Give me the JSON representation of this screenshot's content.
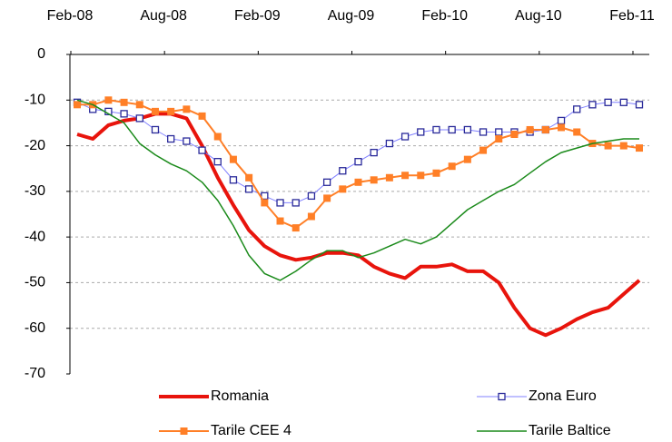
{
  "chart_data": {
    "type": "line",
    "x": [
      "Feb-08",
      "Mar-08",
      "Apr-08",
      "May-08",
      "Jun-08",
      "Jul-08",
      "Aug-08",
      "Sep-08",
      "Oct-08",
      "Nov-08",
      "Dec-08",
      "Jan-09",
      "Feb-09",
      "Mar-09",
      "Apr-09",
      "May-09",
      "Jun-09",
      "Jul-09",
      "Aug-09",
      "Sep-09",
      "Oct-09",
      "Nov-09",
      "Dec-09",
      "Jan-10",
      "Feb-10",
      "Mar-10",
      "Apr-10",
      "May-10",
      "Jun-10",
      "Jul-10",
      "Aug-10",
      "Sep-10",
      "Oct-10",
      "Nov-10",
      "Dec-10",
      "Jan-11",
      "Feb-11"
    ],
    "xticks": [
      "Feb-08",
      "Aug-08",
      "Feb-09",
      "Aug-09",
      "Feb-10",
      "Aug-10",
      "Feb-11"
    ],
    "ylim": [
      -70,
      0
    ],
    "yticks": [
      0,
      -10,
      -20,
      -30,
      -40,
      -50,
      -60,
      -70
    ],
    "grid": true,
    "series": [
      {
        "name": "Romania",
        "color": "#e8140c",
        "width": 4,
        "marker": "none",
        "values": [
          -17.5,
          -18.5,
          -15.5,
          -14.5,
          -14,
          -13,
          -13,
          -14,
          -20,
          -27,
          -33,
          -38.5,
          -42,
          -44,
          -45,
          -44.5,
          -43.5,
          -43.5,
          -44,
          -46.5,
          -48,
          -49,
          -46.5,
          -46.5,
          -46,
          -47.5,
          -47.5,
          -50,
          -55.5,
          -60,
          -61.5,
          -60,
          -58,
          -56.5,
          -55.5,
          -52.5,
          -49.5
        ]
      },
      {
        "name": "Zona Euro",
        "color": "#8080ff",
        "width": 1,
        "marker": "square-open",
        "marker_color": "#2a2a9a",
        "values": [
          -10.5,
          -12,
          -12.5,
          -13,
          -14,
          -16.5,
          -18.5,
          -19,
          -21,
          -23.5,
          -27.5,
          -29.5,
          -31,
          -32.5,
          -32.5,
          -31,
          -28,
          -25.5,
          -23.5,
          -21.5,
          -19.5,
          -18,
          -17,
          -16.5,
          -16.5,
          -16.5,
          -17,
          -17,
          -17,
          -17,
          -16.5,
          -14.5,
          -12,
          -11,
          -10.5,
          -10.5,
          -11
        ]
      },
      {
        "name": "Tarile CEE 4",
        "color": "#ff7f27",
        "width": 2,
        "marker": "square",
        "marker_color": "#ff7f27",
        "values": [
          -11,
          -11,
          -10,
          -10.5,
          -11,
          -12.5,
          -12.5,
          -12,
          -13.5,
          -18,
          -23,
          -27,
          -32.5,
          -36.5,
          -38,
          -35.5,
          -31.5,
          -29.5,
          -28,
          -27.5,
          -27,
          -26.5,
          -26.5,
          -26,
          -24.5,
          -23,
          -21,
          -18.5,
          -17.5,
          -16.5,
          -16.5,
          -16,
          -17,
          -19.5,
          -20,
          -20,
          -20.5
        ]
      },
      {
        "name": "Tarile Baltice",
        "color": "#1a8a1a",
        "width": 1.5,
        "marker": "none",
        "values": [
          -10,
          -11,
          -13,
          -15,
          -19.5,
          -22,
          -24,
          -25.5,
          -28,
          -32,
          -37.5,
          -44,
          -48,
          -49.5,
          -47.5,
          -45,
          -43,
          -43,
          -44.5,
          -43.5,
          -42,
          -40.5,
          -41.5,
          -40,
          -37,
          -34,
          -32,
          -30,
          -28.5,
          -26,
          -23.5,
          -21.5,
          -20.5,
          -19.5,
          -19,
          -18.5,
          -18.5
        ]
      }
    ]
  }
}
